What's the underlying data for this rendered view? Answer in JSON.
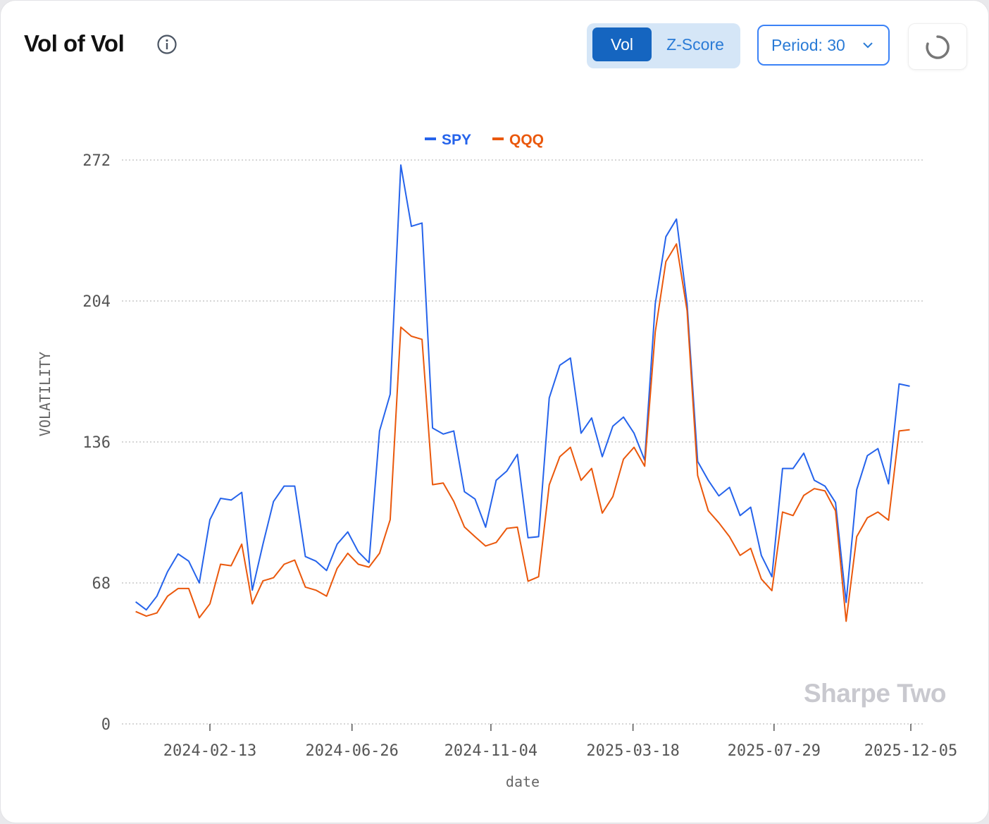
{
  "header": {
    "title": "Vol of Vol",
    "toggle": {
      "options": [
        "Vol",
        "Z-Score"
      ],
      "selected": "Vol"
    },
    "period_label": "Period: 30"
  },
  "watermark": "Sharpe Two",
  "colors": {
    "SPY": "#2563eb",
    "QQQ": "#ea580c",
    "active_toggle": "#1565c0",
    "accent": "#3b82f6"
  },
  "chart_data": {
    "type": "line",
    "xlabel": "date",
    "ylabel": "VOLATILITY",
    "ylim": [
      0,
      272
    ],
    "yticks": [
      0,
      68,
      136,
      204,
      272
    ],
    "xticks": [
      "2024-02-13",
      "2024-06-26",
      "2024-11-04",
      "2025-03-18",
      "2025-07-29",
      "2025-12-05"
    ],
    "grid": "horizontal dotted",
    "legend": "top-center",
    "x": [
      "2023-12-05",
      "2023-12-15",
      "2023-12-25",
      "2024-01-04",
      "2024-01-14",
      "2024-01-24",
      "2024-02-03",
      "2024-02-13",
      "2024-02-23",
      "2024-03-04",
      "2024-03-14",
      "2024-03-24",
      "2024-04-03",
      "2024-04-13",
      "2024-04-23",
      "2024-05-03",
      "2024-05-13",
      "2024-05-23",
      "2024-06-02",
      "2024-06-12",
      "2024-06-22",
      "2024-07-02",
      "2024-07-12",
      "2024-07-22",
      "2024-08-01",
      "2024-08-11",
      "2024-08-21",
      "2024-08-31",
      "2024-09-10",
      "2024-09-20",
      "2024-09-30",
      "2024-10-10",
      "2024-10-20",
      "2024-10-30",
      "2024-11-09",
      "2024-11-19",
      "2024-11-29",
      "2024-12-09",
      "2024-12-19",
      "2024-12-29",
      "2025-01-08",
      "2025-01-18",
      "2025-01-28",
      "2025-02-07",
      "2025-02-17",
      "2025-02-27",
      "2025-03-09",
      "2025-03-19",
      "2025-03-29",
      "2025-04-08",
      "2025-04-18",
      "2025-04-28",
      "2025-05-08",
      "2025-05-18",
      "2025-05-28",
      "2025-06-07",
      "2025-06-17",
      "2025-06-27",
      "2025-07-07",
      "2025-07-17",
      "2025-07-27",
      "2025-08-06",
      "2025-08-16",
      "2025-08-26",
      "2025-09-05",
      "2025-09-15",
      "2025-09-25",
      "2025-10-05",
      "2025-10-15",
      "2025-10-25",
      "2025-11-04",
      "2025-11-14",
      "2025-11-24",
      "2025-12-04"
    ],
    "series": [
      {
        "name": "SPY",
        "values": [
          58.9,
          55,
          61.6,
          73.4,
          82,
          78.5,
          68,
          98.5,
          108.8,
          108,
          111.7,
          64.5,
          86.7,
          107.3,
          114.7,
          114.7,
          80.7,
          78.5,
          74,
          86.7,
          92.6,
          83,
          77.8,
          141.3,
          159,
          269.6,
          240,
          241.6,
          142.7,
          139.8,
          141.3,
          112,
          108.5,
          94.9,
          117.5,
          122,
          130,
          89.8,
          90.3,
          157.2,
          173,
          176.5,
          140.2,
          147.6,
          128.9,
          143.6,
          148,
          140.2,
          127.2,
          202.6,
          235,
          243.5,
          202.6,
          126.6,
          117.5,
          110,
          114.1,
          100.5,
          104.5,
          81.3,
          71,
          123.2,
          123.2,
          130.6,
          117.5,
          114.7,
          106.8,
          58.6,
          113,
          129.4,
          132.8,
          115.8,
          164,
          162.9
        ]
      },
      {
        "name": "QQQ",
        "values": [
          54.2,
          52,
          53.5,
          61.6,
          65.3,
          65.3,
          51.2,
          57.9,
          77,
          76.3,
          86.7,
          57.9,
          69,
          70.5,
          77,
          79,
          66,
          64.5,
          61.6,
          75,
          82.3,
          77,
          75.6,
          82.3,
          98.5,
          191.4,
          187,
          185.5,
          115.4,
          116.2,
          107.3,
          95,
          90.3,
          85.8,
          87.5,
          94.3,
          94.9,
          68.8,
          71,
          115.3,
          128.9,
          133.4,
          117.5,
          123.2,
          101.7,
          109.6,
          127.7,
          133.4,
          124.3,
          189,
          223,
          231.5,
          199.3,
          119.8,
          102.8,
          97,
          90.3,
          81.3,
          84.7,
          69.9,
          64.3,
          102.2,
          100.5,
          110.2,
          113.5,
          112.4,
          102.8,
          49.5,
          90.3,
          99.4,
          102.2,
          98.3,
          141.3,
          141.9
        ]
      }
    ]
  }
}
